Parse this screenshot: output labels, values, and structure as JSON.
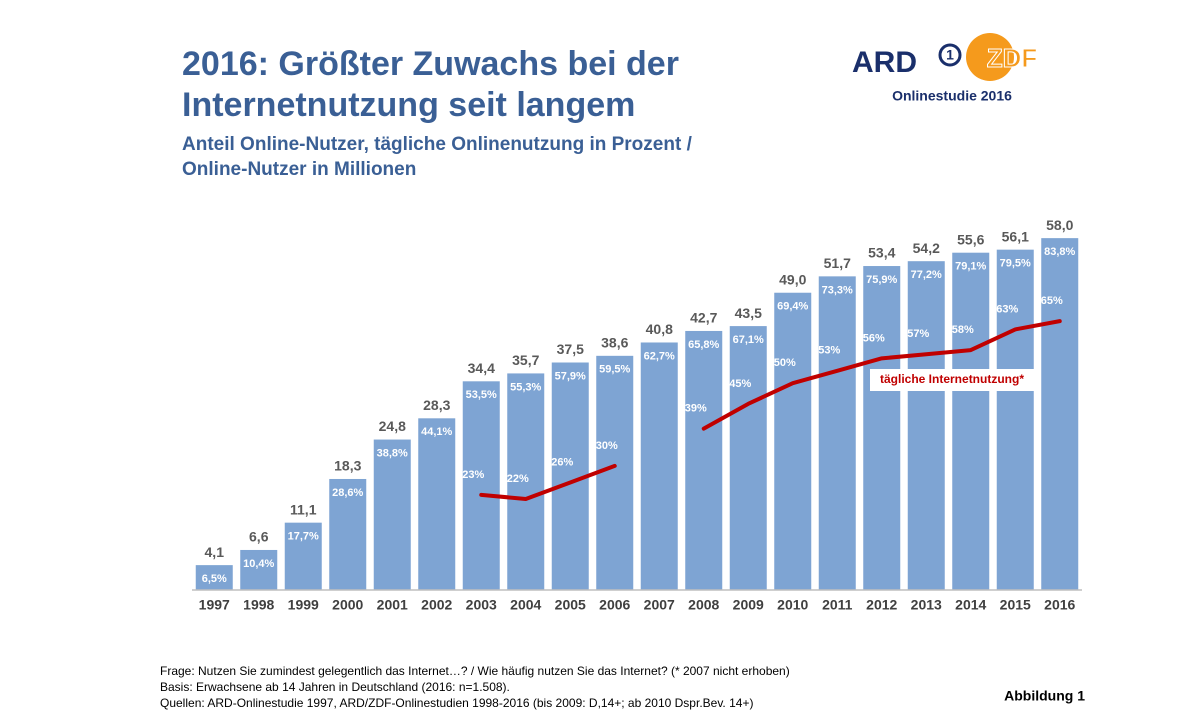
{
  "header": {
    "title_lines": [
      "2016: Größter Zuwachs bei der",
      "Internetnutzung seit langem"
    ],
    "subtitle_lines": [
      "Anteil Online-Nutzer, tägliche Onlinenutzung in Prozent /",
      "Online-Nutzer in Millionen"
    ]
  },
  "logo": {
    "ard": "ARD",
    "ard_mark": "1",
    "zdf": "ZDF",
    "caption": "Onlinestudie 2016"
  },
  "chart_data": {
    "type": "bar",
    "categories": [
      "1997",
      "1998",
      "1999",
      "2000",
      "2001",
      "2002",
      "2003",
      "2004",
      "2005",
      "2006",
      "2007",
      "2008",
      "2009",
      "2010",
      "2011",
      "2012",
      "2013",
      "2014",
      "2015",
      "2016"
    ],
    "ylim": [
      0,
      60
    ],
    "y2lim": [
      0,
      88
    ],
    "series": [
      {
        "type": "bar",
        "color": "#7ea4d3",
        "values": [
          4.1,
          6.6,
          11.1,
          18.3,
          24.8,
          28.3,
          34.4,
          35.7,
          37.5,
          38.6,
          40.8,
          42.7,
          43.5,
          49.0,
          51.7,
          53.4,
          54.2,
          55.6,
          56.1,
          58.0
        ],
        "value_labels": [
          "4,1",
          "6,6",
          "11,1",
          "18,3",
          "24,8",
          "28,3",
          "34,4",
          "35,7",
          "37,5",
          "38,6",
          "40,8",
          "42,7",
          "43,5",
          "49,0",
          "51,7",
          "53,4",
          "54,2",
          "55,6",
          "56,1",
          "58,0"
        ],
        "share_values": [
          6.5,
          10.4,
          17.7,
          28.6,
          38.8,
          44.1,
          53.5,
          55.3,
          57.9,
          59.5,
          62.7,
          65.8,
          67.1,
          69.4,
          73.3,
          75.9,
          77.2,
          79.1,
          79.5,
          83.8
        ],
        "share_labels": [
          "6,5%",
          "10,4%",
          "17,7%",
          "28,6%",
          "38,8%",
          "44,1%",
          "53,5%",
          "55,3%",
          "57,9%",
          "59,5%",
          "62,7%",
          "65,8%",
          "67,1%",
          "69,4%",
          "73,3%",
          "75,9%",
          "77,2%",
          "79,1%",
          "79,5%",
          "83,8%"
        ]
      },
      {
        "type": "line",
        "axis": "y2",
        "name": "tägliche Internetnutzung*",
        "color": "#c00000",
        "values": [
          null,
          null,
          null,
          null,
          null,
          null,
          23,
          22,
          26,
          30,
          null,
          39,
          45,
          50,
          53,
          56,
          57,
          58,
          63,
          65
        ],
        "value_labels": [
          null,
          null,
          null,
          null,
          null,
          null,
          "23%",
          "22%",
          "26%",
          "30%",
          null,
          "39%",
          "45%",
          "50%",
          "53%",
          "56%",
          "57%",
          "58%",
          "63%",
          "65%"
        ]
      }
    ]
  },
  "footer": {
    "notes": [
      "Frage: Nutzen Sie zumindest gelegentlich das Internet…?  / Wie häufig nutzen Sie das Internet? (* 2007 nicht erhoben)",
      "Basis: Erwachsene ab 14 Jahren in Deutschland (2016: n=1.508).",
      "Quellen: ARD-Onlinestudie 1997, ARD/ZDF-Onlinestudien 1998-2016 (bis 2009: D,14+; ab 2010 Dspr.Bev. 14+)"
    ],
    "figure_label": "Abbildung 1"
  }
}
